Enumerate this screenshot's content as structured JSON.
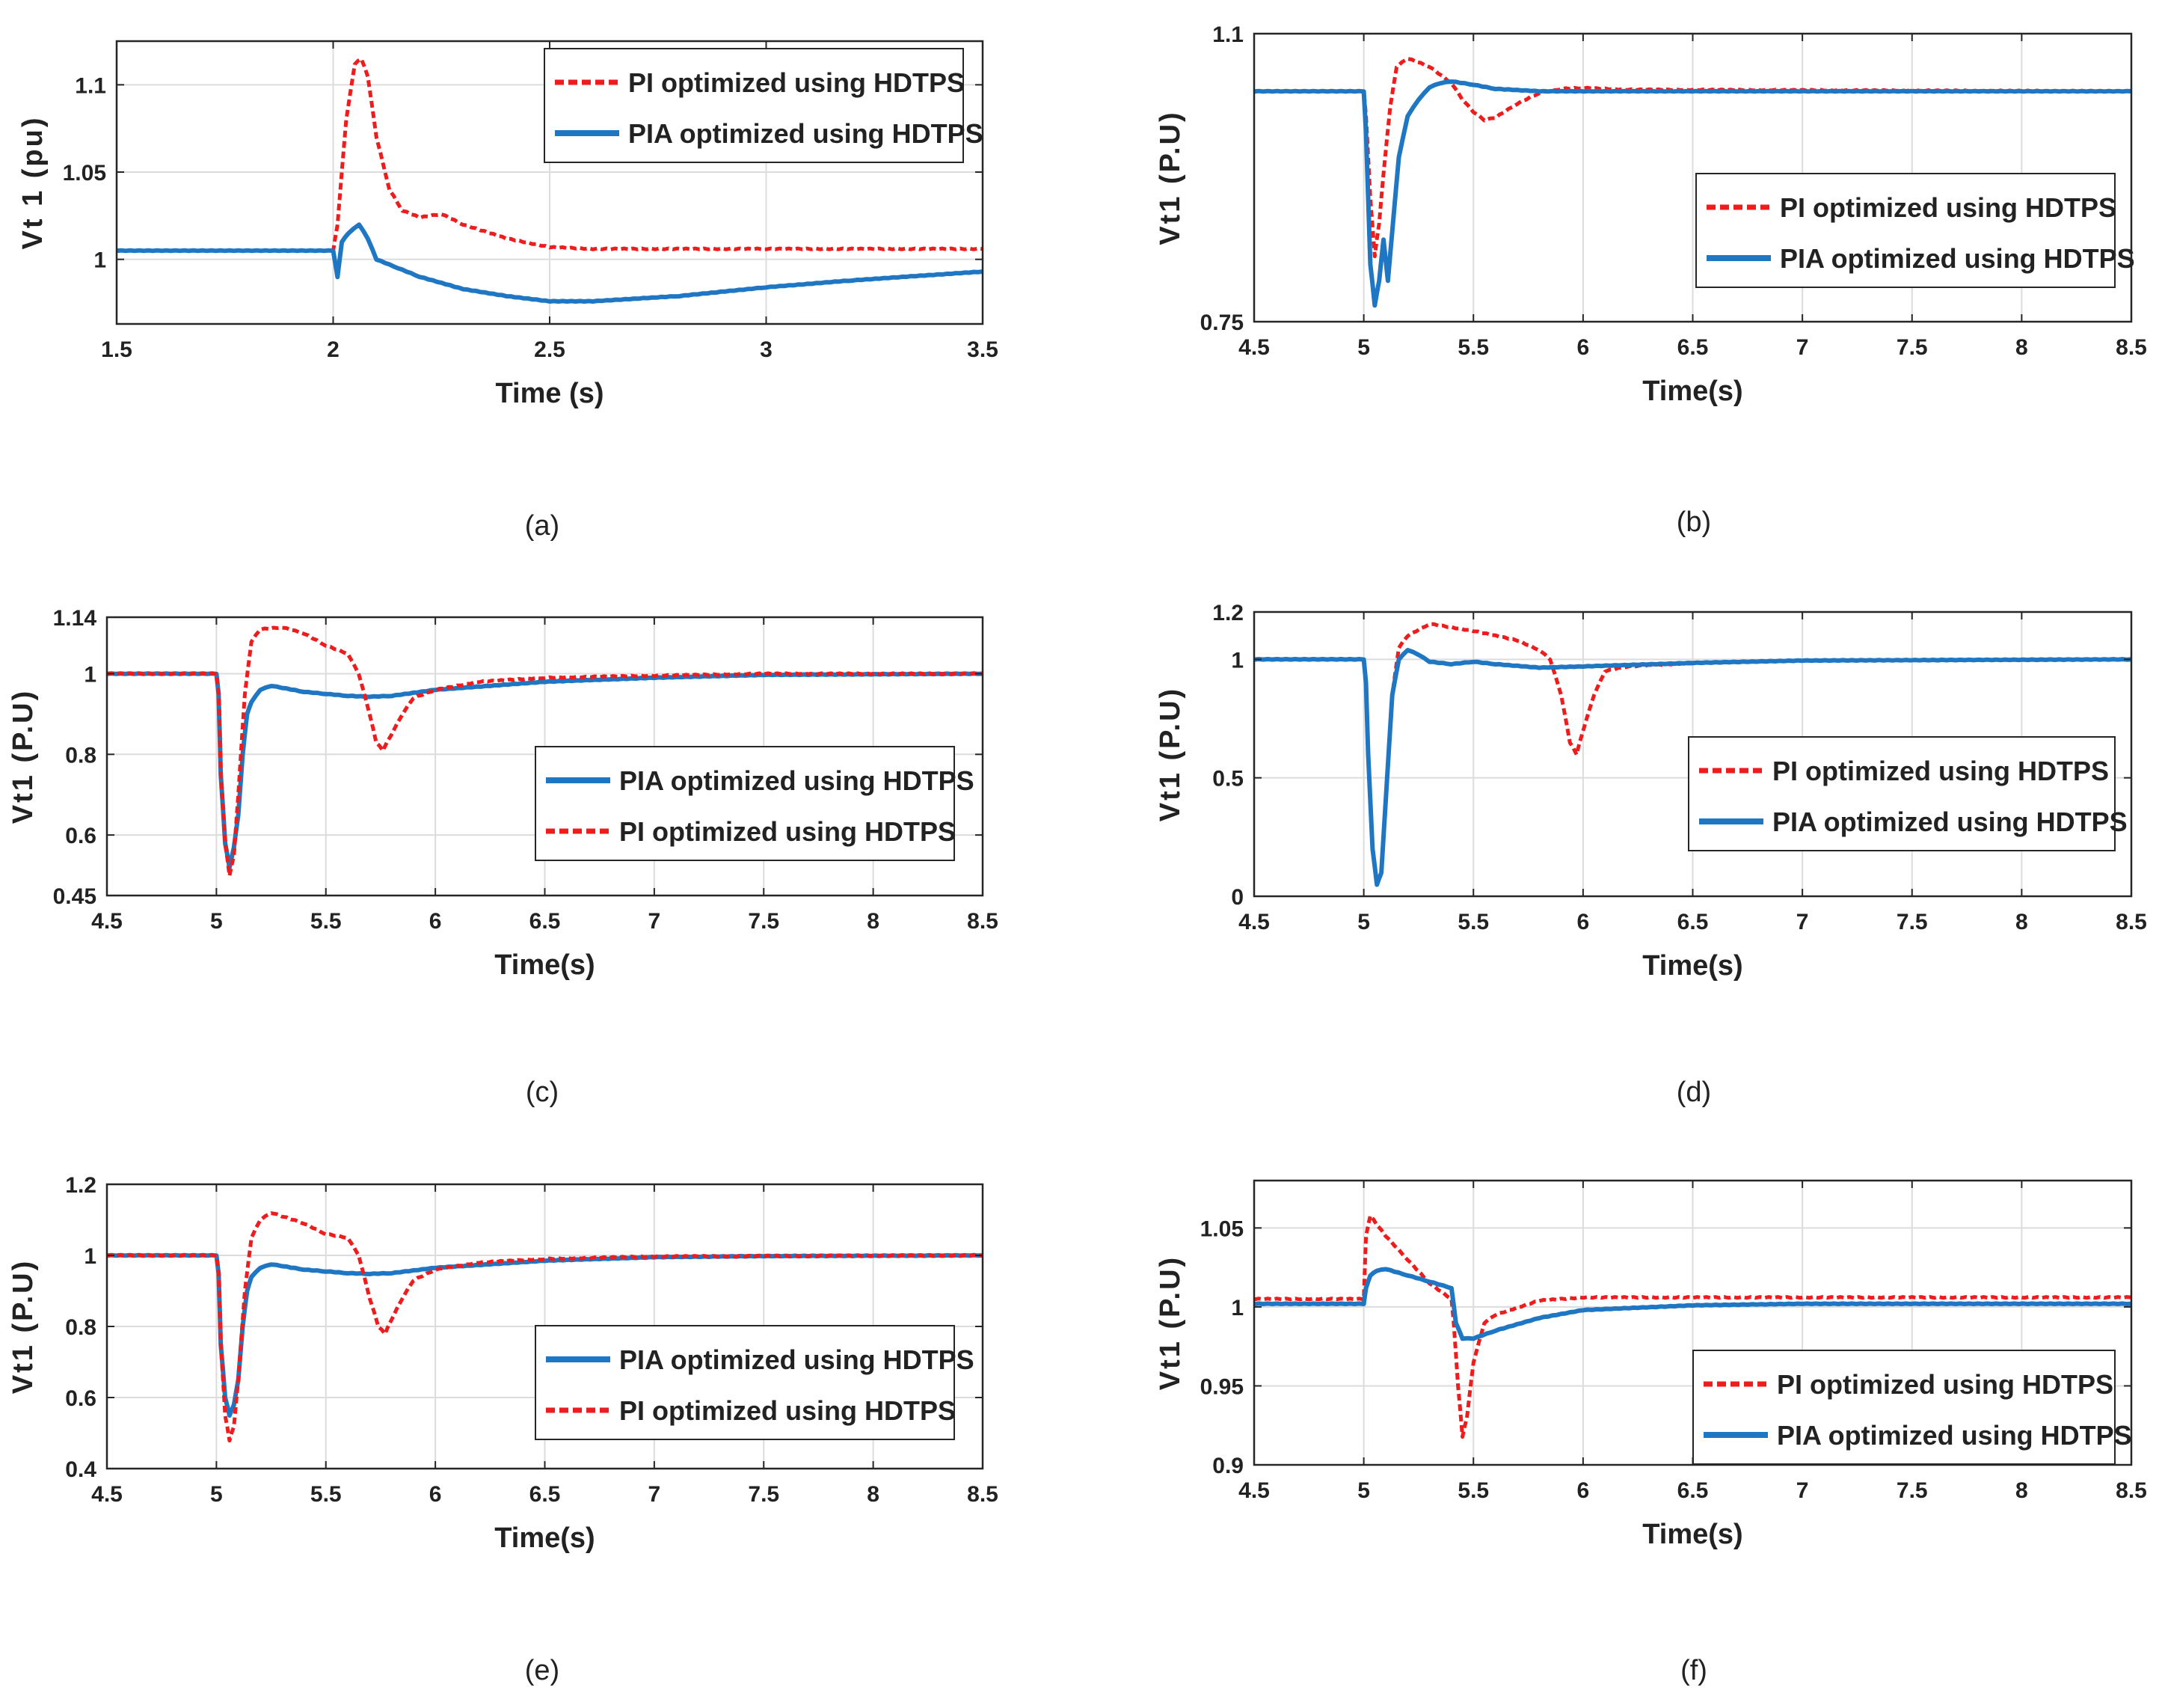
{
  "colors": {
    "pi": "#ee1c1c",
    "pia": "#1f77c4",
    "grid": "#dcdcdc",
    "axis": "#262626"
  },
  "chart_data": [
    {
      "type": "line",
      "caption": "(a)",
      "xlabel": "Time (s)",
      "ylabel": "Vt 1 (pu)",
      "xlim": [
        1.5,
        3.5
      ],
      "ylim": [
        0.963,
        1.125
      ],
      "xticks": [
        "1.5",
        "2",
        "2.5",
        "3",
        "3.5"
      ],
      "xtick_values": [
        1.5,
        2,
        2.5,
        3,
        3.5
      ],
      "yticks": [
        "1",
        "1.05",
        "1.1"
      ],
      "ytick_values": [
        1,
        1.05,
        1.1
      ],
      "legend_position": "top-right",
      "series": [
        {
          "name": "PI optimized using HDTPS",
          "style": "dashed",
          "color": "#ee1c1c",
          "x": [
            1.5,
            2.0,
            2.01,
            2.03,
            2.05,
            2.065,
            2.08,
            2.1,
            2.13,
            2.16,
            2.2,
            2.25,
            2.3,
            2.4,
            2.5,
            2.6,
            3.0,
            3.5
          ],
          "y": [
            1.005,
            1.005,
            1.02,
            1.08,
            1.112,
            1.115,
            1.105,
            1.07,
            1.04,
            1.028,
            1.024,
            1.026,
            1.02,
            1.012,
            1.007,
            1.006,
            1.006,
            1.006
          ]
        },
        {
          "name": "PIA optimized using HDTPS",
          "style": "solid",
          "color": "#1f77c4",
          "x": [
            1.5,
            2.0,
            2.01,
            2.02,
            2.035,
            2.06,
            2.08,
            2.1,
            2.15,
            2.2,
            2.3,
            2.4,
            2.5,
            2.6,
            2.8,
            3.0,
            3.2,
            3.5
          ],
          "y": [
            1.005,
            1.005,
            0.99,
            1.01,
            1.015,
            1.02,
            1.012,
            1.0,
            0.995,
            0.99,
            0.983,
            0.979,
            0.976,
            0.976,
            0.979,
            0.984,
            0.988,
            0.993
          ]
        }
      ]
    },
    {
      "type": "line",
      "caption": "(b)",
      "xlabel": "Time(s)",
      "ylabel": "Vt1 (P.U)",
      "xlim": [
        4.5,
        8.5
      ],
      "ylim": [
        0.75,
        1.1
      ],
      "xticks": [
        "4.5",
        "5",
        "5.5",
        "6",
        "6.5",
        "7",
        "7.5",
        "8",
        "8.5"
      ],
      "xtick_values": [
        4.5,
        5,
        5.5,
        6,
        6.5,
        7,
        7.5,
        8,
        8.5
      ],
      "yticks": [
        "0.75",
        "1.1"
      ],
      "ytick_values": [
        0.75,
        1.1
      ],
      "legend_position": "bottom-right",
      "series": [
        {
          "name": "PI optimized using HDTPS",
          "style": "dashed",
          "color": "#ee1c1c",
          "x": [
            4.5,
            5.0,
            5.01,
            5.03,
            5.05,
            5.07,
            5.09,
            5.12,
            5.15,
            5.2,
            5.3,
            5.4,
            5.45,
            5.5,
            5.55,
            5.6,
            5.7,
            5.8,
            5.9,
            6.0,
            6.2,
            8.5
          ],
          "y": [
            1.03,
            1.03,
            1.0,
            0.9,
            0.83,
            0.87,
            0.93,
            1.01,
            1.06,
            1.07,
            1.06,
            1.04,
            1.02,
            1.005,
            0.995,
            0.998,
            1.015,
            1.028,
            1.033,
            1.034,
            1.032,
            1.03
          ]
        },
        {
          "name": "PIA optimized using HDTPS",
          "style": "solid",
          "color": "#1f77c4",
          "x": [
            4.5,
            5.0,
            5.01,
            5.03,
            5.05,
            5.07,
            5.09,
            5.11,
            5.13,
            5.16,
            5.2,
            5.25,
            5.3,
            5.35,
            5.4,
            5.5,
            5.6,
            5.8,
            8.5
          ],
          "y": [
            1.03,
            1.03,
            0.98,
            0.82,
            0.77,
            0.8,
            0.85,
            0.8,
            0.86,
            0.95,
            1.0,
            1.02,
            1.035,
            1.04,
            1.042,
            1.038,
            1.033,
            1.03,
            1.03
          ]
        }
      ]
    },
    {
      "type": "line",
      "caption": "(c)",
      "xlabel": "Time(s)",
      "ylabel": "Vt1 (P.U)",
      "xlim": [
        4.5,
        8.5
      ],
      "ylim": [
        0.45,
        1.14
      ],
      "xticks": [
        "4.5",
        "5",
        "5.5",
        "6",
        "6.5",
        "7",
        "7.5",
        "8",
        "8.5"
      ],
      "xtick_values": [
        4.5,
        5,
        5.5,
        6,
        6.5,
        7,
        7.5,
        8,
        8.5
      ],
      "yticks": [
        "0.45",
        "0.6",
        "0.8",
        "1",
        "1.14"
      ],
      "ytick_values": [
        0.45,
        0.6,
        0.8,
        1,
        1.14
      ],
      "legend_position": "bottom-right",
      "series": [
        {
          "name": "PIA optimized using HDTPS",
          "style": "solid",
          "color": "#1f77c4",
          "x": [
            4.5,
            5.0,
            5.01,
            5.02,
            5.04,
            5.06,
            5.08,
            5.1,
            5.12,
            5.14,
            5.16,
            5.2,
            5.25,
            5.3,
            5.4,
            5.5,
            5.6,
            5.7,
            5.8,
            6.0,
            6.5,
            7.0,
            7.5,
            8.5
          ],
          "y": [
            1.0,
            1.0,
            0.95,
            0.75,
            0.58,
            0.52,
            0.57,
            0.65,
            0.8,
            0.9,
            0.93,
            0.96,
            0.97,
            0.965,
            0.955,
            0.95,
            0.945,
            0.943,
            0.945,
            0.96,
            0.98,
            0.99,
            0.997,
            1.0
          ]
        },
        {
          "name": "PI optimized using HDTPS",
          "style": "dashed",
          "color": "#ee1c1c",
          "x": [
            4.5,
            5.0,
            5.01,
            5.02,
            5.04,
            5.06,
            5.08,
            5.1,
            5.13,
            5.16,
            5.2,
            5.3,
            5.4,
            5.5,
            5.6,
            5.65,
            5.7,
            5.73,
            5.76,
            5.8,
            5.85,
            5.9,
            6.0,
            6.2,
            6.5,
            7.0,
            7.5,
            8.5
          ],
          "y": [
            1.0,
            1.0,
            0.95,
            0.75,
            0.58,
            0.5,
            0.55,
            0.7,
            0.95,
            1.08,
            1.11,
            1.115,
            1.1,
            1.07,
            1.05,
            1.0,
            0.9,
            0.83,
            0.81,
            0.85,
            0.9,
            0.94,
            0.96,
            0.98,
            0.99,
            0.995,
            1.0,
            1.0
          ]
        }
      ]
    },
    {
      "type": "line",
      "caption": "(d)",
      "xlabel": "Time(s)",
      "ylabel": "Vt1 (P.U)",
      "xlim": [
        4.5,
        8.5
      ],
      "ylim": [
        0,
        1.2
      ],
      "xticks": [
        "4.5",
        "5",
        "5.5",
        "6",
        "6.5",
        "7",
        "7.5",
        "8",
        "8.5"
      ],
      "xtick_values": [
        4.5,
        5,
        5.5,
        6,
        6.5,
        7,
        7.5,
        8,
        8.5
      ],
      "yticks": [
        "0",
        "0.5",
        "1",
        "1.2"
      ],
      "ytick_values": [
        0,
        0.5,
        1,
        1.2
      ],
      "legend_position": "bottom-right",
      "series": [
        {
          "name": "PI optimized using HDTPS",
          "style": "dashed",
          "color": "#ee1c1c",
          "x": [
            4.5,
            5.0,
            5.01,
            5.02,
            5.04,
            5.06,
            5.08,
            5.1,
            5.13,
            5.16,
            5.2,
            5.3,
            5.5,
            5.7,
            5.8,
            5.85,
            5.9,
            5.94,
            5.97,
            6.0,
            6.05,
            6.1,
            6.2,
            6.5,
            7.0,
            8.5
          ],
          "y": [
            1.0,
            1.0,
            0.9,
            0.6,
            0.2,
            0.05,
            0.1,
            0.4,
            0.85,
            1.05,
            1.1,
            1.15,
            1.12,
            1.08,
            1.04,
            1.0,
            0.85,
            0.65,
            0.6,
            0.7,
            0.85,
            0.95,
            0.97,
            0.985,
            0.995,
            1.0
          ]
        },
        {
          "name": "PIA optimized using HDTPS",
          "style": "solid",
          "color": "#1f77c4",
          "x": [
            4.5,
            5.0,
            5.01,
            5.02,
            5.04,
            5.06,
            5.08,
            5.1,
            5.13,
            5.16,
            5.2,
            5.25,
            5.3,
            5.4,
            5.5,
            5.6,
            5.8,
            6.0,
            6.5,
            7.0,
            8.5
          ],
          "y": [
            1.0,
            1.0,
            0.9,
            0.6,
            0.2,
            0.05,
            0.1,
            0.4,
            0.85,
            1.0,
            1.04,
            1.02,
            0.99,
            0.98,
            0.99,
            0.98,
            0.965,
            0.97,
            0.985,
            0.995,
            1.0
          ]
        }
      ]
    },
    {
      "type": "line",
      "caption": "(e)",
      "xlabel": "Time(s)",
      "ylabel": "Vt1 (P.U)",
      "xlim": [
        4.5,
        8.5
      ],
      "ylim": [
        0.4,
        1.2
      ],
      "xticks": [
        "4.5",
        "5",
        "5.5",
        "6",
        "6.5",
        "7",
        "7.5",
        "8",
        "8.5"
      ],
      "xtick_values": [
        4.5,
        5,
        5.5,
        6,
        6.5,
        7,
        7.5,
        8,
        8.5
      ],
      "yticks": [
        "0.4",
        "0.6",
        "0.8",
        "1",
        "1.2"
      ],
      "ytick_values": [
        0.4,
        0.6,
        0.8,
        1,
        1.2
      ],
      "legend_position": "bottom-right",
      "series": [
        {
          "name": "PIA optimized using HDTPS",
          "style": "solid",
          "color": "#1f77c4",
          "x": [
            4.5,
            5.0,
            5.01,
            5.02,
            5.04,
            5.06,
            5.08,
            5.1,
            5.12,
            5.14,
            5.16,
            5.2,
            5.25,
            5.3,
            5.4,
            5.5,
            5.6,
            5.7,
            5.8,
            6.0,
            6.5,
            7.0,
            7.5,
            8.5
          ],
          "y": [
            1.0,
            1.0,
            0.95,
            0.75,
            0.6,
            0.55,
            0.58,
            0.65,
            0.8,
            0.9,
            0.94,
            0.965,
            0.975,
            0.97,
            0.96,
            0.955,
            0.95,
            0.948,
            0.95,
            0.965,
            0.985,
            0.995,
            0.998,
            1.0
          ]
        },
        {
          "name": "PI optimized using HDTPS",
          "style": "dashed",
          "color": "#ee1c1c",
          "x": [
            4.5,
            5.0,
            5.01,
            5.02,
            5.04,
            5.06,
            5.08,
            5.1,
            5.13,
            5.16,
            5.2,
            5.25,
            5.3,
            5.4,
            5.5,
            5.6,
            5.65,
            5.7,
            5.74,
            5.77,
            5.8,
            5.85,
            5.9,
            6.0,
            6.2,
            6.5,
            7.0,
            8.5
          ],
          "y": [
            1.0,
            1.0,
            0.95,
            0.75,
            0.55,
            0.48,
            0.52,
            0.65,
            0.9,
            1.05,
            1.1,
            1.12,
            1.11,
            1.09,
            1.06,
            1.05,
            1.0,
            0.88,
            0.8,
            0.78,
            0.82,
            0.88,
            0.93,
            0.96,
            0.98,
            0.99,
            0.997,
            1.0
          ]
        }
      ]
    },
    {
      "type": "line",
      "caption": "(f)",
      "xlabel": "Time(s)",
      "ylabel": "Vt1 (P.U)",
      "xlim": [
        4.5,
        8.5
      ],
      "ylim": [
        0.9,
        1.08
      ],
      "xticks": [
        "4.5",
        "5",
        "5.5",
        "6",
        "6.5",
        "7",
        "7.5",
        "8",
        "8.5"
      ],
      "xtick_values": [
        4.5,
        5,
        5.5,
        6,
        6.5,
        7,
        7.5,
        8,
        8.5
      ],
      "yticks": [
        "0.9",
        "0.95",
        "1",
        "1.05"
      ],
      "ytick_values": [
        0.9,
        0.95,
        1,
        1.05
      ],
      "legend_position": "bottom-right",
      "series": [
        {
          "name": "PI optimized using HDTPS",
          "style": "dashed",
          "color": "#ee1c1c",
          "x": [
            4.5,
            5.0,
            5.01,
            5.03,
            5.06,
            5.1,
            5.2,
            5.3,
            5.4,
            5.41,
            5.43,
            5.45,
            5.47,
            5.5,
            5.55,
            5.6,
            5.8,
            6.0,
            6.5,
            8.5
          ],
          "y": [
            1.005,
            1.005,
            1.045,
            1.058,
            1.052,
            1.045,
            1.03,
            1.015,
            1.005,
            0.99,
            0.95,
            0.918,
            0.93,
            0.965,
            0.99,
            0.995,
            1.004,
            1.006,
            1.006,
            1.006
          ]
        },
        {
          "name": "PIA optimized using HDTPS",
          "style": "solid",
          "color": "#1f77c4",
          "x": [
            4.5,
            5.0,
            5.01,
            5.03,
            5.06,
            5.1,
            5.2,
            5.3,
            5.4,
            5.42,
            5.45,
            5.5,
            5.6,
            5.8,
            6.0,
            6.5,
            7.0,
            8.5
          ],
          "y": [
            1.002,
            1.002,
            1.012,
            1.02,
            1.023,
            1.024,
            1.02,
            1.016,
            1.012,
            0.99,
            0.98,
            0.98,
            0.985,
            0.993,
            0.998,
            1.001,
            1.002,
            1.002
          ]
        }
      ]
    }
  ]
}
